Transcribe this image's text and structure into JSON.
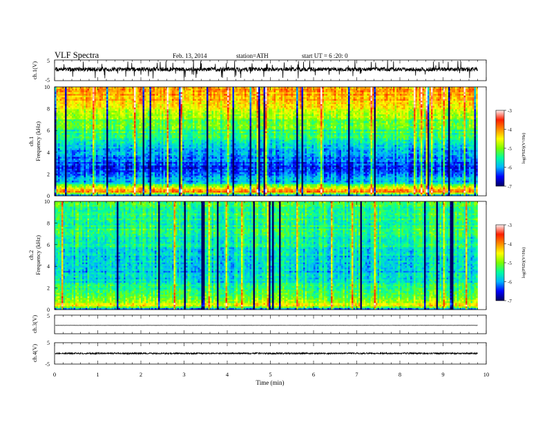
{
  "header": {
    "title": "VLF  Spectra",
    "date": "Feb. 13, 2014",
    "station": "station=ATH",
    "start": "start  UT  =   6  :20: 0"
  },
  "chart_data": [
    {
      "type": "line",
      "panel": "ch1-waveform",
      "ylabel": "ch.1(V)",
      "ylim": [
        -5,
        5
      ],
      "yticks": [
        "5",
        "-5"
      ],
      "xlim": [
        0,
        10
      ],
      "data_end_min": 9.8,
      "baseline_v": 0.5,
      "noise_amplitude_v": 1,
      "spike_amplitude_v": 4.5,
      "color": "#000000"
    },
    {
      "type": "heatmap",
      "panel": "ch1-spectrogram",
      "ylabel": "ch.1\nFrequency  (kHz)",
      "ylim": [
        0,
        10
      ],
      "yticks": [
        "0",
        "2",
        "4",
        "6",
        "8",
        "10"
      ],
      "xlim": [
        0,
        10
      ],
      "data_end_min": 9.8,
      "log_psd_profile": [
        {
          "f_khz": 0.0,
          "log_psd": -6.5
        },
        {
          "f_khz": 0.35,
          "log_psd": -4.0
        },
        {
          "f_khz": 0.8,
          "log_psd": -4.5
        },
        {
          "f_khz": 1.2,
          "log_psd": -5.8
        },
        {
          "f_khz": 2.0,
          "log_psd": -6.3
        },
        {
          "f_khz": 3.0,
          "log_psd": -6.3
        },
        {
          "f_khz": 4.0,
          "log_psd": -6.0
        },
        {
          "f_khz": 5.0,
          "log_psd": -5.6
        },
        {
          "f_khz": 6.0,
          "log_psd": -5.3
        },
        {
          "f_khz": 7.0,
          "log_psd": -5.0
        },
        {
          "f_khz": 8.0,
          "log_psd": -4.6
        },
        {
          "f_khz": 9.0,
          "log_psd": -4.2
        },
        {
          "f_khz": 10.0,
          "log_psd": -4.0
        }
      ],
      "colorbar": {
        "label": "log(PSD)(V²/Hz)",
        "range": [
          -7,
          -3
        ],
        "ticks": [
          "-3",
          "-4",
          "-5",
          "-6",
          "-7"
        ]
      }
    },
    {
      "type": "heatmap",
      "panel": "ch2-spectrogram",
      "ylabel": "ch.2\nFrequency  (kHz)",
      "ylim": [
        0,
        10
      ],
      "yticks": [
        "0",
        "2",
        "4",
        "6",
        "8",
        "10"
      ],
      "xlim": [
        0,
        10
      ],
      "data_end_min": 9.8,
      "log_psd_profile": [
        {
          "f_khz": 0.0,
          "log_psd": -6.5
        },
        {
          "f_khz": 0.35,
          "log_psd": -4.5
        },
        {
          "f_khz": 1.0,
          "log_psd": -5.0
        },
        {
          "f_khz": 1.5,
          "log_psd": -5.3
        },
        {
          "f_khz": 2.5,
          "log_psd": -5.6
        },
        {
          "f_khz": 3.5,
          "log_psd": -5.9
        },
        {
          "f_khz": 4.5,
          "log_psd": -5.8
        },
        {
          "f_khz": 6.0,
          "log_psd": -5.5
        },
        {
          "f_khz": 8.0,
          "log_psd": -5.4
        },
        {
          "f_khz": 10.0,
          "log_psd": -5.3
        }
      ],
      "colorbar": {
        "label": "log(PSD)(V²/Hz)",
        "range": [
          -7,
          -3
        ],
        "ticks": [
          "-3",
          "-4",
          "-5",
          "-6",
          "-7"
        ]
      }
    },
    {
      "type": "line",
      "panel": "ch3-waveform",
      "ylabel": "ch.3(V)",
      "ylim": [
        -5,
        5
      ],
      "yticks": [
        "5"
      ],
      "xlim": [
        0,
        10
      ],
      "data_end_min": 9.8,
      "baseline_v": -0.5,
      "noise_amplitude_v": 0.05,
      "color": "#000000"
    },
    {
      "type": "line",
      "panel": "ch4-waveform",
      "ylabel": "ch.4(V)",
      "ylim": [
        -5,
        5
      ],
      "yticks": [
        "5",
        "-5"
      ],
      "xlim": [
        0,
        10
      ],
      "data_end_min": 9.8,
      "baseline_v": 0,
      "noise_amplitude_v": 0.35,
      "color": "#000000"
    }
  ],
  "xaxis": {
    "label": "Time  (min)",
    "ticks": [
      "0",
      "1",
      "2",
      "3",
      "4",
      "5",
      "6",
      "7",
      "8",
      "9",
      "10"
    ],
    "range": [
      0,
      10
    ]
  }
}
